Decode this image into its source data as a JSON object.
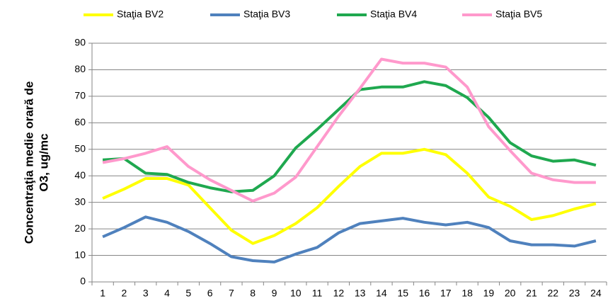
{
  "chart_data": {
    "type": "line",
    "y_label": [
      "Concentraţia medie orară de",
      "O3, ug/mc"
    ],
    "categories": [
      "1",
      "2",
      "3",
      "4",
      "5",
      "6",
      "7",
      "8",
      "9",
      "10",
      "11",
      "12",
      "13",
      "14",
      "15",
      "16",
      "17",
      "18",
      "19",
      "20",
      "21",
      "22",
      "23",
      "24"
    ],
    "series": [
      {
        "name": "Staţia BV2",
        "color": "#ffff00",
        "values": [
          31.5,
          35,
          39,
          39,
          36.5,
          28,
          19.5,
          14.5,
          17.5,
          22,
          28,
          36,
          43.5,
          48.5,
          48.5,
          50,
          48,
          41,
          32,
          28.5,
          23.5,
          25,
          27.5,
          29.5
        ]
      },
      {
        "name": "Staţia BV3",
        "color": "#4f81bd",
        "values": [
          17,
          20.5,
          24.5,
          22.5,
          19,
          14.5,
          9.5,
          8,
          7.5,
          10.5,
          13,
          18.5,
          22,
          23,
          24,
          22.5,
          21.5,
          22.5,
          20.5,
          15.5,
          14,
          14,
          13.5,
          15.5
        ]
      },
      {
        "name": "Staţia BV4",
        "color": "#1fa84f",
        "values": [
          46,
          46.5,
          41,
          40.5,
          37.5,
          35.5,
          34,
          34.5,
          40,
          50.5,
          57.5,
          65,
          72.5,
          73.5,
          73.5,
          75.5,
          74,
          69.5,
          62,
          52.5,
          47.5,
          45.5,
          46,
          44
        ]
      },
      {
        "name": "Staţia BV5",
        "color": "#ff99cc",
        "values": [
          45,
          46.5,
          48.5,
          51,
          43.5,
          38.5,
          34.5,
          30.5,
          33.5,
          39.5,
          51,
          62.5,
          73,
          84,
          82.5,
          82.5,
          81,
          73.5,
          58.5,
          49.5,
          41,
          38.5,
          37.5,
          37.5
        ]
      }
    ],
    "ylim": [
      0,
      90
    ],
    "yticks": [
      0,
      10,
      20,
      30,
      40,
      50,
      60,
      70,
      80,
      90
    ],
    "grid": true,
    "legend": "top"
  }
}
